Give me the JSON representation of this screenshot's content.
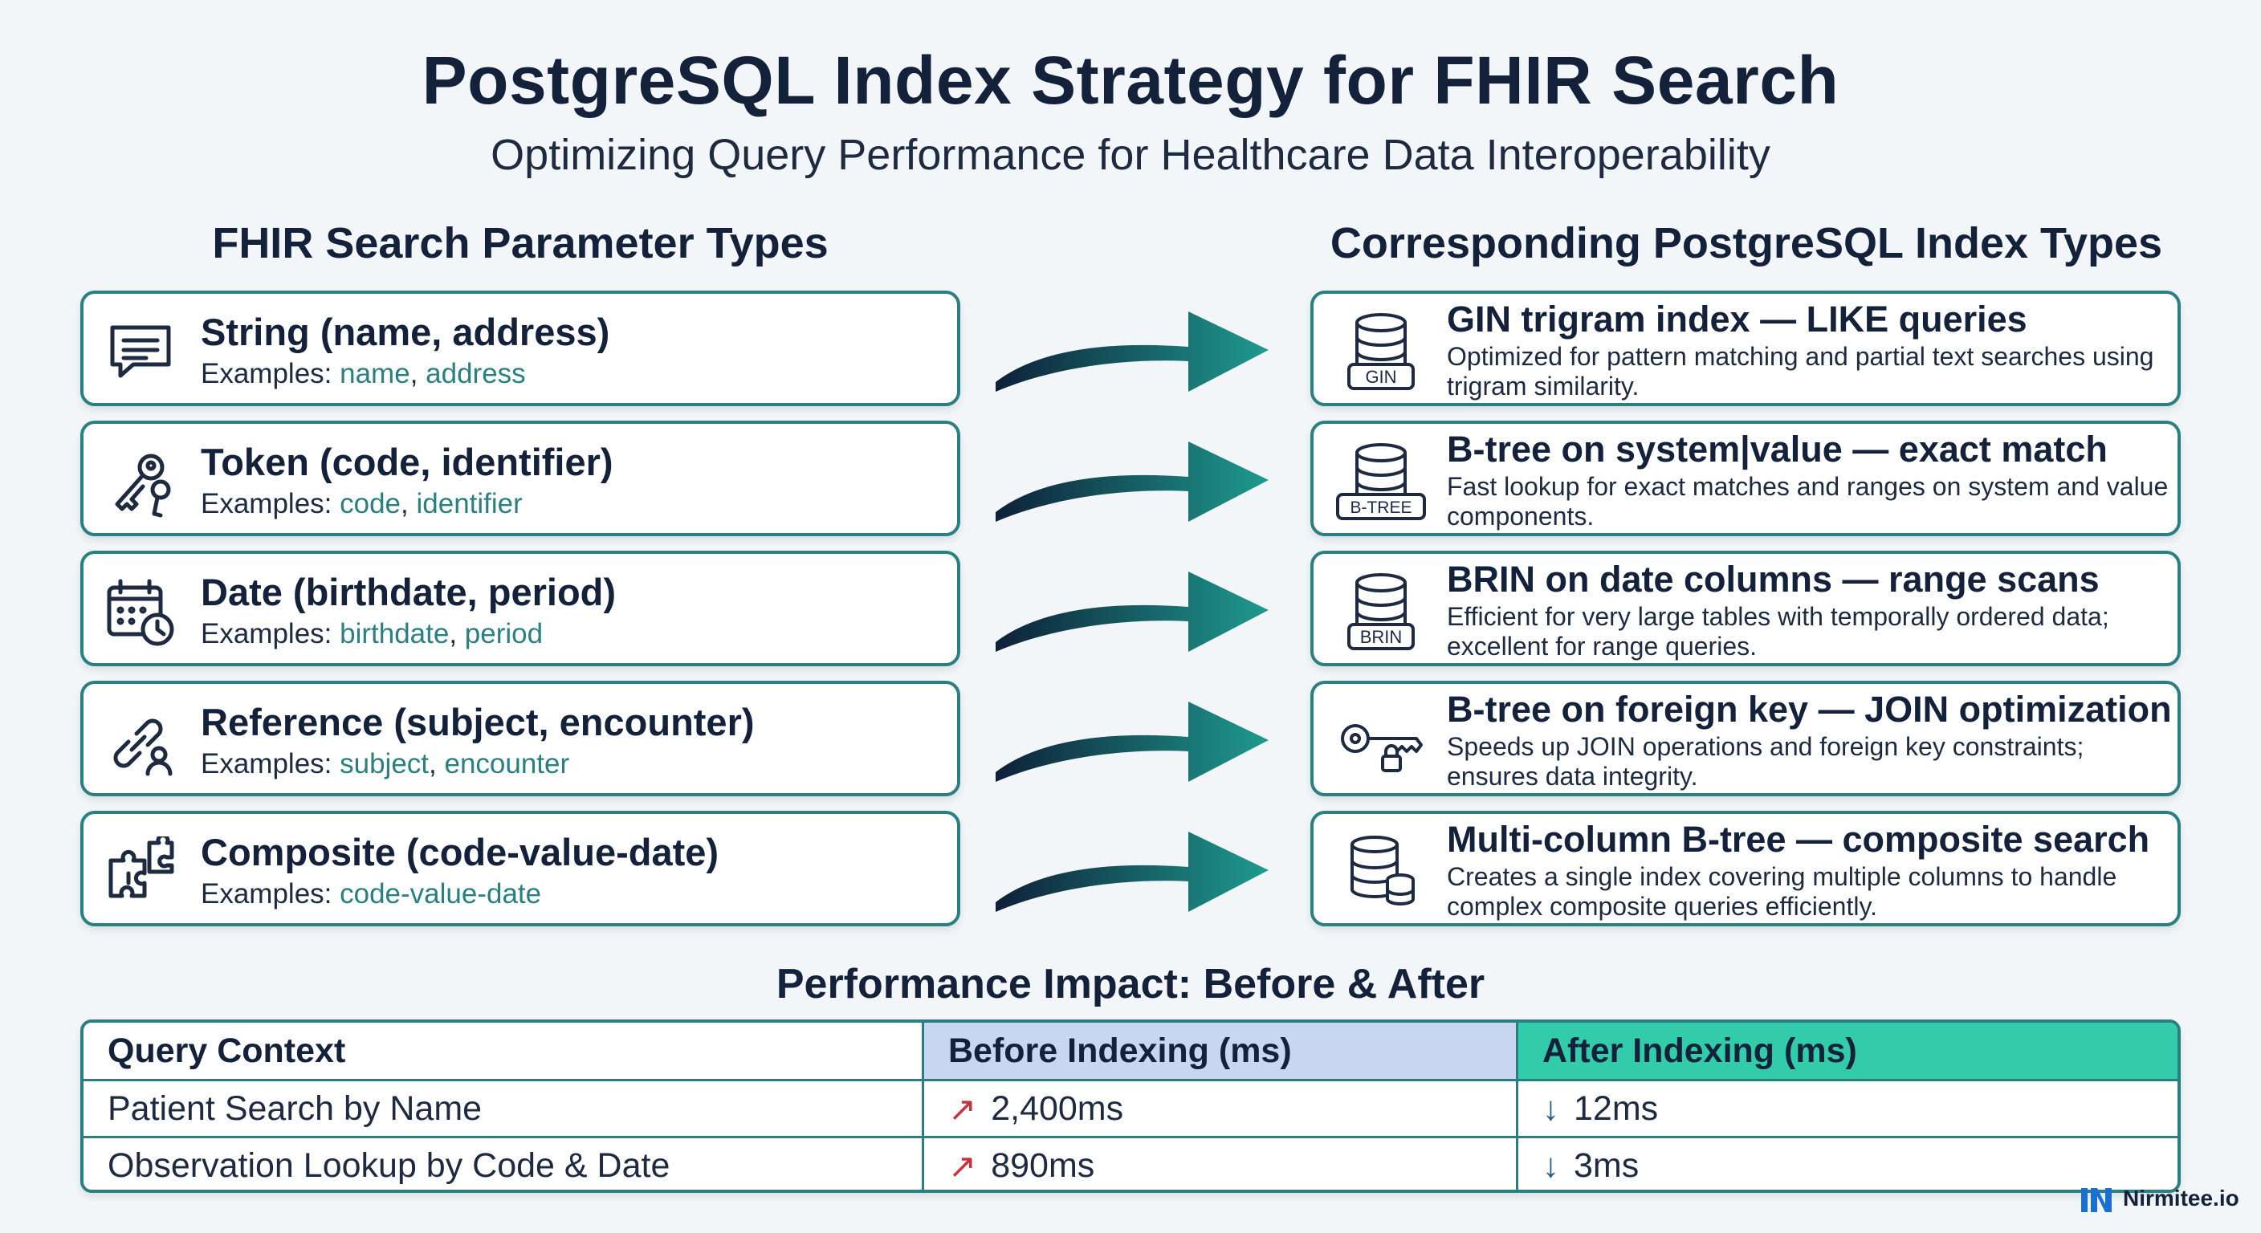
{
  "header": {
    "title": "PostgreSQL Index Strategy for FHIR Search",
    "subtitle": "Optimizing Query Performance for Healthcare Data Interoperability"
  },
  "left_column": {
    "heading": "FHIR Search Parameter Types",
    "items": [
      {
        "icon": "chat-bubble-icon",
        "title": "String (name, address)",
        "examples_prefix": "Examples: ",
        "ex1": "name",
        "sep": ", ",
        "ex2": "address"
      },
      {
        "icon": "keys-icon",
        "title": "Token (code, identifier)",
        "examples_prefix": "Examples: ",
        "ex1": "code",
        "sep": ", ",
        "ex2": "identifier"
      },
      {
        "icon": "calendar-clock-icon",
        "title": "Date (birthdate, period)",
        "examples_prefix": "Examples: ",
        "ex1": "birthdate",
        "sep": ", ",
        "ex2": "period"
      },
      {
        "icon": "link-person-icon",
        "title": "Reference (subject, encounter)",
        "examples_prefix": "Examples: ",
        "ex1": "subject",
        "sep": ", ",
        "ex2": "encounter"
      },
      {
        "icon": "puzzle-icon",
        "title": "Composite (code-value-date)",
        "examples_prefix": "Examples: ",
        "ex1": "code-value-date",
        "sep": "",
        "ex2": ""
      }
    ]
  },
  "right_column": {
    "heading": "Corresponding PostgreSQL Index Types",
    "items": [
      {
        "icon": "database-gin-icon",
        "icon_label": "GIN",
        "title": "GIN trigram index — LIKE queries",
        "description": "Optimized for pattern matching and partial text searches using trigram similarity."
      },
      {
        "icon": "database-btree-icon",
        "icon_label": "B-TREE",
        "title": "B-tree on system|value — exact match",
        "description": "Fast lookup for exact matches and ranges on system and value components."
      },
      {
        "icon": "database-brin-icon",
        "icon_label": "BRIN",
        "title": "BRIN on date columns — range scans",
        "description": "Efficient for very large tables with temporally ordered data; excellent for range queries."
      },
      {
        "icon": "key-lock-icon",
        "icon_label": "",
        "title": "B-tree on foreign key — JOIN optimization",
        "description": "Speeds up JOIN operations and foreign key constraints; ensures data integrity."
      },
      {
        "icon": "database-stack-icon",
        "icon_label": "",
        "title": "Multi-column B-tree — composite search",
        "description": "Creates a single index covering multiple columns to handle complex composite queries efficiently."
      }
    ]
  },
  "performance": {
    "heading": "Performance Impact: Before & After",
    "columns": [
      "Query Context",
      "Before Indexing (ms)",
      "After Indexing (ms)"
    ],
    "rows": [
      {
        "context": "Patient Search by Name",
        "before": "2,400ms",
        "after": "12ms"
      },
      {
        "context": "Observation Lookup by Code & Date",
        "before": "890ms",
        "after": "3ms"
      }
    ],
    "up_glyph": "↗",
    "down_glyph": "↓"
  },
  "brand": {
    "name": "Nirmitee.io"
  },
  "colors": {
    "teal": "#2a7f80",
    "navy": "#14213a",
    "before_header": "#c8d6f2",
    "after_header": "#33ccaa",
    "up_arrow": "#c8303a"
  }
}
